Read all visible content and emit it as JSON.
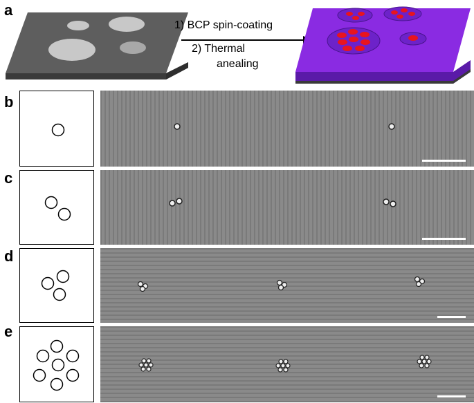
{
  "panel_labels": {
    "a": "a",
    "b": "b",
    "c": "c",
    "d": "d",
    "e": "e"
  },
  "process": {
    "step1": "1) BCP spin-coating",
    "step2_line1": "2) Thermal",
    "step2_line2": "anealing"
  },
  "colors": {
    "substrate_top": "#5e5e5e",
    "substrate_side": "#3a3a3a",
    "hole": "#c8c8c8",
    "bcp_film": "#8a2be2",
    "bcp_edge": "#5a1aa8",
    "domain": "#e8141e"
  },
  "rows": [
    {
      "label": "b",
      "holes": 1
    },
    {
      "label": "c",
      "holes": 2
    },
    {
      "label": "d",
      "holes": 3
    },
    {
      "label": "e",
      "holes": 7
    }
  ]
}
